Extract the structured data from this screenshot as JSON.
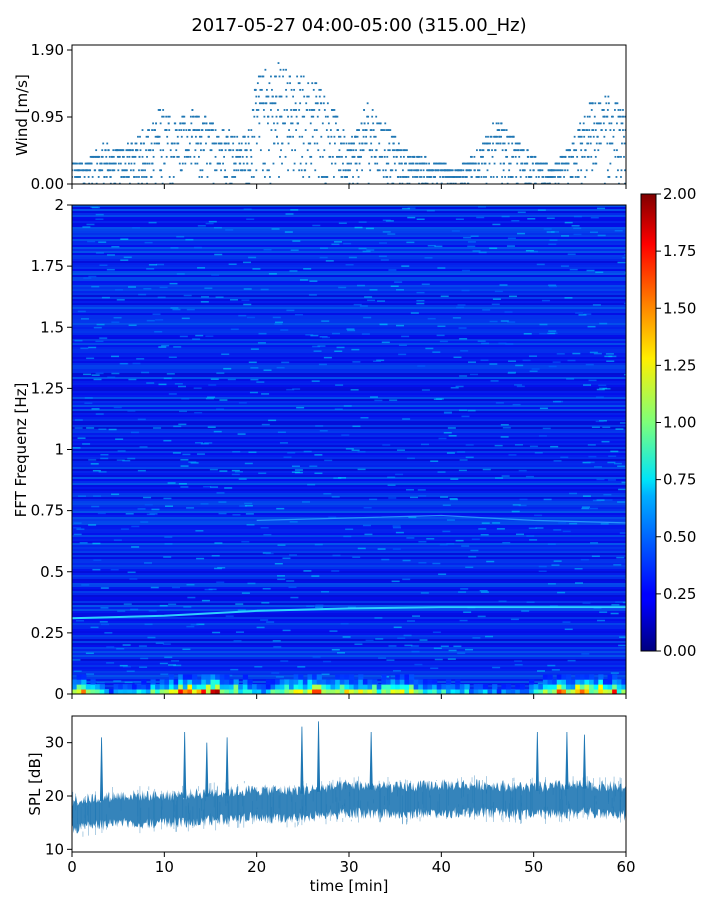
{
  "figure": {
    "title": "2017-05-27 04:00-05:00 (315.00_Hz)"
  },
  "chart_data": [
    {
      "type": "scatter",
      "panel": "wind",
      "ylabel": "Wind [m/s]",
      "xlim": [
        0,
        60
      ],
      "ylim": [
        0,
        1.9
      ],
      "yticks": [
        0.0,
        0.95,
        1.9
      ],
      "ytick_labels": [
        "0.00",
        "0.95",
        "1.90"
      ],
      "color": "#1f77b4",
      "quantization_step": 0.095,
      "envelope": {
        "x": [
          0,
          2,
          3.5,
          5,
          7,
          9.5,
          11,
          13,
          16,
          19,
          20,
          22,
          24,
          26,
          28,
          30,
          32,
          34,
          36,
          38,
          40,
          42,
          44,
          46,
          48,
          50,
          52,
          54,
          56,
          58,
          60
        ],
        "y": [
          0.25,
          0.35,
          0.55,
          0.45,
          0.6,
          1.05,
          0.85,
          1.0,
          0.8,
          0.65,
          1.45,
          1.75,
          1.5,
          1.45,
          1.2,
          0.55,
          1.1,
          0.8,
          0.45,
          0.35,
          0.25,
          0.2,
          0.45,
          0.9,
          0.6,
          0.35,
          0.2,
          0.5,
          1.1,
          1.2,
          1.0
        ]
      }
    },
    {
      "type": "heatmap",
      "panel": "spectrogram",
      "ylabel": "FFT Frequenz [Hz]",
      "xlim": [
        0,
        60
      ],
      "ylim": [
        0,
        2
      ],
      "yticks": [
        0,
        0.25,
        0.5,
        0.75,
        1,
        1.25,
        1.5,
        1.75,
        2
      ],
      "ytick_labels": [
        "0",
        "0.25",
        "0.5",
        "0.75",
        "1",
        "1.25",
        "1.5",
        "1.75",
        "2"
      ],
      "colormap": "jet",
      "lines": [
        {
          "x": [
            0,
            10,
            20,
            30,
            40,
            50,
            60
          ],
          "y": [
            0.31,
            0.32,
            0.34,
            0.35,
            0.355,
            0.355,
            0.355
          ]
        },
        {
          "x": [
            20,
            30,
            40,
            50,
            60
          ],
          "y": [
            0.71,
            0.72,
            0.73,
            0.71,
            0.7
          ]
        }
      ],
      "low_freq_energy": {
        "x": [
          0,
          4,
          8,
          12,
          16,
          20,
          24,
          28,
          32,
          36,
          40,
          44,
          48,
          52,
          56,
          60
        ],
        "y": [
          1.4,
          0.5,
          0.7,
          1.5,
          1.6,
          0.6,
          1.3,
          1.4,
          1.1,
          1.2,
          0.7,
          0.6,
          0.5,
          1.4,
          1.5,
          1.3
        ]
      },
      "colorbar": {
        "range": [
          0,
          2
        ],
        "ticks": [
          0.0,
          0.25,
          0.5,
          0.75,
          1.0,
          1.25,
          1.5,
          1.75,
          2.0
        ],
        "tick_labels": [
          "0.00",
          "0.25",
          "0.50",
          "0.75",
          "1.00",
          "1.25",
          "1.50",
          "1.75",
          "2.00"
        ]
      }
    },
    {
      "type": "area",
      "panel": "spl",
      "xlabel": "time [min]",
      "ylabel": "SPL [dB]",
      "xlim": [
        0,
        60
      ],
      "ylim": [
        9.5,
        35
      ],
      "xticks": [
        0,
        10,
        20,
        30,
        40,
        50,
        60
      ],
      "xtick_labels": [
        "0",
        "10",
        "20",
        "30",
        "40",
        "50",
        "60"
      ],
      "yticks": [
        10,
        20,
        30
      ],
      "ytick_labels": [
        "10",
        "20",
        "30"
      ],
      "color": "#1f77b4",
      "baseline": {
        "x": [
          0,
          5,
          10,
          15,
          20,
          25,
          30,
          35,
          40,
          45,
          50,
          55,
          60
        ],
        "y": [
          16.5,
          17.5,
          17.5,
          18,
          18.5,
          18.5,
          19.5,
          19,
          19.5,
          19.5,
          19,
          19.5,
          19
        ]
      },
      "spikes": [
        {
          "x": 3.2,
          "y": 31
        },
        {
          "x": 12.2,
          "y": 32
        },
        {
          "x": 14.6,
          "y": 30
        },
        {
          "x": 16.8,
          "y": 31
        },
        {
          "x": 24.9,
          "y": 33
        },
        {
          "x": 26.7,
          "y": 34
        },
        {
          "x": 32.4,
          "y": 32
        },
        {
          "x": 50.4,
          "y": 32
        },
        {
          "x": 53.6,
          "y": 32
        },
        {
          "x": 55.5,
          "y": 31.5
        }
      ]
    }
  ]
}
